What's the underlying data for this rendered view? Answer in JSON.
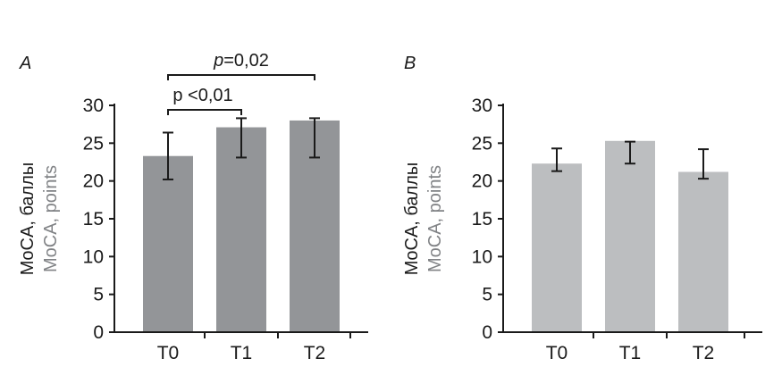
{
  "chart_data": [
    {
      "type": "bar",
      "panel_label": "A",
      "categories": [
        "T0",
        "T1",
        "T2"
      ],
      "values": [
        23.3,
        27.1,
        28.0
      ],
      "error_low": [
        20.2,
        23.1,
        23.1
      ],
      "error_high": [
        26.4,
        28.3,
        28.3
      ],
      "ylabel_primary": "MoCA, баллы",
      "ylabel_secondary": "MoCA, points",
      "yticks": [
        "0",
        "5",
        "10",
        "15",
        "20",
        "25",
        "30"
      ],
      "ylim": [
        0,
        30
      ],
      "bar_color": "#939598",
      "annotations": [
        {
          "text": "p <0,01",
          "from": "T0",
          "to": "T1"
        },
        {
          "text_italic": "p",
          "text_rest": "=0,02",
          "from": "T0",
          "to": "T2"
        }
      ],
      "grid": false
    },
    {
      "type": "bar",
      "panel_label": "B",
      "categories": [
        "T0",
        "T1",
        "T2"
      ],
      "values": [
        22.3,
        25.3,
        21.2
      ],
      "error_low": [
        21.3,
        22.3,
        20.3
      ],
      "error_high": [
        24.3,
        25.2,
        24.2
      ],
      "ylabel_primary": "MoCA, баллы",
      "ylabel_secondary": "MoCA, points",
      "yticks": [
        "0",
        "5",
        "10",
        "15",
        "20",
        "25",
        "30"
      ],
      "ylim": [
        0,
        30
      ],
      "bar_color": "#bcbec0",
      "annotations": [],
      "grid": false
    }
  ],
  "colors": {
    "axis": "#1a1a1a",
    "label_primary": "#1a1a1a",
    "label_secondary": "#808285"
  }
}
